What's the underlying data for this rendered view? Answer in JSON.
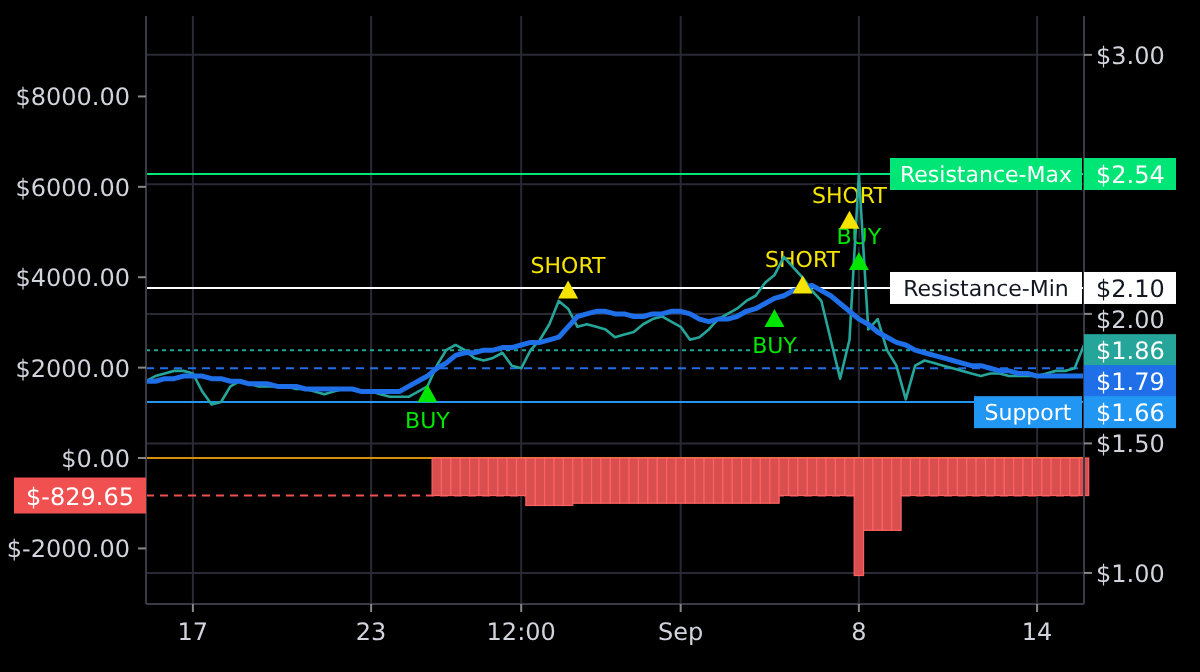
{
  "chart_data": {
    "type": "line",
    "categories": [
      null,
      null,
      null,
      null,
      null,
      "17",
      null,
      null,
      null,
      null,
      null,
      null,
      null,
      null,
      null,
      null,
      null,
      null,
      null,
      null,
      null,
      null,
      null,
      null,
      "23",
      null,
      null,
      null,
      null,
      null,
      null,
      null,
      null,
      null,
      null,
      null,
      null,
      null,
      null,
      null,
      "12:00",
      null,
      null,
      null,
      null,
      null,
      null,
      null,
      null,
      null,
      null,
      null,
      null,
      null,
      null,
      null,
      null,
      "Sep",
      null,
      null,
      null,
      null,
      null,
      null,
      null,
      null,
      null,
      null,
      null,
      null,
      null,
      null,
      null,
      null,
      null,
      null,
      "8",
      null,
      null,
      null,
      null,
      null,
      null,
      null,
      null,
      null,
      null,
      null,
      null,
      null,
      null,
      null,
      null,
      null,
      null,
      "14",
      null,
      null,
      null,
      null,
      null
    ],
    "ylim": [
      -3230,
      9780
    ],
    "yticks": [
      {
        "value": 8000,
        "label": "$8000.00"
      },
      {
        "value": 6000,
        "label": "$6000.00"
      },
      {
        "value": 4000,
        "label": "$4000.00"
      },
      {
        "value": 2000,
        "label": "$2000.00"
      },
      {
        "value": 0,
        "label": "$0.00"
      },
      {
        "value": -2000,
        "label": "$-2000.00"
      }
    ],
    "y2lim": [
      0.88,
      3.15
    ],
    "y2ticks": [
      {
        "value": 3,
        "label": "$3.00"
      },
      {
        "value": 2.5,
        "label": null
      },
      {
        "value": 2,
        "label": "$2.00"
      },
      {
        "value": 1.5,
        "label": "$1.50"
      },
      {
        "value": 1,
        "label": "$1.00"
      },
      {
        "value": 2.54,
        "label": "$2.54"
      },
      {
        "value": 2.1,
        "label": "$2.10"
      },
      {
        "value": 1.86,
        "label": "$1.86"
      },
      {
        "value": 1.79,
        "label": "$1.79"
      },
      {
        "value": 1.66,
        "label": "$1.66"
      }
    ],
    "grid": true,
    "ref_lines": [
      {
        "axis": "y2",
        "value": 2.54,
        "label": "Resistance-Max",
        "color": "#00e676",
        "line_style": "solid"
      },
      {
        "axis": "y2",
        "value": 2.1,
        "label": "Resistance-Min",
        "color": "#ffffff",
        "line_style": "solid"
      },
      {
        "axis": "y2",
        "value": 1.86,
        "color": "#26a69a",
        "line_style": "dotted"
      },
      {
        "axis": "y2",
        "value": 1.79,
        "color": "#1e6fe8",
        "line_style": "dashed"
      },
      {
        "axis": "y2",
        "value": 1.66,
        "label": "Support",
        "color": "#2196f3",
        "line_style": "solid"
      },
      {
        "axis": "y",
        "value": 0,
        "color": "#d4900a",
        "line_style": "solid"
      },
      {
        "axis": "y",
        "value": -829.65,
        "label": "$-829.65",
        "color": "#f05050",
        "line_style": "dashed"
      }
    ],
    "series": [
      {
        "type": "bar",
        "axis": "y",
        "color": "#d94f4f",
        "values": [
          null,
          null,
          null,
          null,
          null,
          null,
          null,
          null,
          null,
          null,
          null,
          null,
          null,
          null,
          null,
          null,
          null,
          null,
          null,
          null,
          null,
          null,
          null,
          null,
          null,
          null,
          null,
          null,
          null,
          null,
          null,
          -830,
          -830,
          -830,
          -830,
          -830,
          -830,
          -830,
          -830,
          -830,
          -830,
          -1050,
          -1050,
          -1050,
          -1050,
          -1050,
          -1000,
          -1000,
          -1000,
          -1000,
          -1000,
          -1000,
          -1000,
          -1000,
          -1000,
          -1000,
          -1000,
          -1000,
          -1000,
          -1000,
          -1000,
          -1000,
          -1000,
          -1000,
          -1000,
          -1000,
          -1000,
          -1000,
          -830,
          -830,
          -830,
          -830,
          -830,
          -830,
          -830,
          -830,
          -2600,
          -1600,
          -1600,
          -1600,
          -1600,
          -830,
          -830,
          -830,
          -830,
          -830,
          -830,
          -830,
          -830,
          -830,
          -830,
          -830,
          -830,
          -830,
          -830,
          -830,
          -830,
          -830,
          -830,
          -830,
          -830
        ]
      },
      {
        "axis": "y2",
        "color": "#26a69a",
        "values": [
          1.74,
          1.76,
          1.77,
          1.78,
          1.78,
          1.77,
          1.7,
          1.65,
          1.66,
          1.72,
          1.74,
          1.73,
          1.72,
          1.72,
          1.72,
          1.72,
          1.71,
          1.71,
          1.7,
          1.69,
          1.7,
          1.71,
          1.71,
          1.7,
          1.7,
          1.69,
          1.68,
          1.68,
          1.68,
          1.7,
          1.72,
          1.8,
          1.86,
          1.88,
          1.86,
          1.83,
          1.82,
          1.83,
          1.85,
          1.8,
          1.79,
          1.86,
          1.9,
          1.96,
          2.05,
          2.02,
          1.95,
          1.96,
          1.95,
          1.94,
          1.91,
          1.92,
          1.93,
          1.96,
          1.98,
          1.99,
          1.97,
          1.95,
          1.9,
          1.91,
          1.94,
          1.98,
          2.0,
          2.02,
          2.05,
          2.07,
          2.12,
          2.15,
          2.22,
          2.18,
          2.14,
          2.09,
          2.05,
          1.9,
          1.75,
          1.9,
          2.54,
          1.94,
          1.98,
          1.86,
          1.8,
          1.67,
          1.8,
          1.82,
          1.81,
          1.8,
          1.79,
          1.78,
          1.77,
          1.76,
          1.77,
          1.77,
          1.76,
          1.76,
          1.76,
          1.76,
          1.77,
          1.78,
          1.78,
          1.79,
          1.88
        ]
      },
      {
        "axis": "y2",
        "color": "#1e6fe8",
        "values": [
          1.74,
          1.74,
          1.75,
          1.75,
          1.76,
          1.76,
          1.76,
          1.75,
          1.75,
          1.74,
          1.74,
          1.73,
          1.73,
          1.73,
          1.72,
          1.72,
          1.72,
          1.71,
          1.71,
          1.71,
          1.71,
          1.71,
          1.71,
          1.7,
          1.7,
          1.7,
          1.7,
          1.7,
          1.72,
          1.74,
          1.76,
          1.79,
          1.81,
          1.84,
          1.85,
          1.85,
          1.86,
          1.86,
          1.87,
          1.87,
          1.88,
          1.89,
          1.89,
          1.9,
          1.91,
          1.95,
          1.99,
          2.0,
          2.01,
          2.01,
          2.0,
          2.0,
          1.99,
          1.99,
          2.0,
          2.0,
          2.01,
          2.01,
          2.0,
          1.98,
          1.97,
          1.98,
          1.98,
          1.99,
          2.01,
          2.02,
          2.04,
          2.06,
          2.07,
          2.09,
          2.1,
          2.11,
          2.09,
          2.07,
          2.04,
          2.01,
          1.98,
          1.96,
          1.93,
          1.91,
          1.89,
          1.88,
          1.86,
          1.85,
          1.84,
          1.83,
          1.82,
          1.81,
          1.8,
          1.8,
          1.79,
          1.78,
          1.78,
          1.77,
          1.77,
          1.76,
          1.76,
          1.76,
          1.76,
          1.76,
          1.76
        ]
      },
      {
        "type": "scatter",
        "name": "BUY",
        "axis": "y2",
        "color": "#00e600",
        "marker": "triangle",
        "values": [
          null,
          null,
          null,
          null,
          null,
          null,
          null,
          null,
          null,
          null,
          null,
          null,
          null,
          null,
          null,
          null,
          null,
          null,
          null,
          null,
          null,
          null,
          null,
          null,
          null,
          null,
          null,
          null,
          null,
          null,
          1.69,
          null,
          null,
          null,
          null,
          null,
          null,
          null,
          null,
          null,
          null,
          null,
          null,
          null,
          null,
          null,
          null,
          null,
          null,
          null,
          null,
          null,
          null,
          null,
          null,
          null,
          null,
          null,
          null,
          null,
          null,
          null,
          null,
          null,
          null,
          null,
          null,
          1.98,
          null,
          null,
          null,
          null,
          null,
          null,
          null,
          null,
          2.2,
          null,
          null,
          null,
          null,
          null,
          null,
          null,
          null,
          null,
          null,
          null,
          null,
          null,
          null,
          null,
          null,
          null,
          null,
          null,
          null,
          null,
          null,
          null,
          null
        ]
      },
      {
        "type": "scatter",
        "name": "SHORT",
        "axis": "y2",
        "color": "#f5e400",
        "marker": "triangle",
        "values": [
          null,
          null,
          null,
          null,
          null,
          null,
          null,
          null,
          null,
          null,
          null,
          null,
          null,
          null,
          null,
          null,
          null,
          null,
          null,
          null,
          null,
          null,
          null,
          null,
          null,
          null,
          null,
          null,
          null,
          null,
          null,
          null,
          null,
          null,
          null,
          null,
          null,
          null,
          null,
          null,
          null,
          null,
          null,
          null,
          null,
          2.09,
          null,
          null,
          null,
          null,
          null,
          null,
          null,
          null,
          null,
          null,
          null,
          null,
          null,
          null,
          null,
          null,
          null,
          null,
          null,
          null,
          null,
          null,
          null,
          null,
          2.11,
          null,
          null,
          null,
          null,
          2.36,
          null,
          null,
          null,
          null,
          null,
          null,
          null,
          null,
          null,
          null,
          null,
          null,
          null,
          null,
          null,
          null,
          null,
          null,
          null,
          null,
          null,
          null,
          null,
          null,
          null
        ]
      }
    ]
  }
}
